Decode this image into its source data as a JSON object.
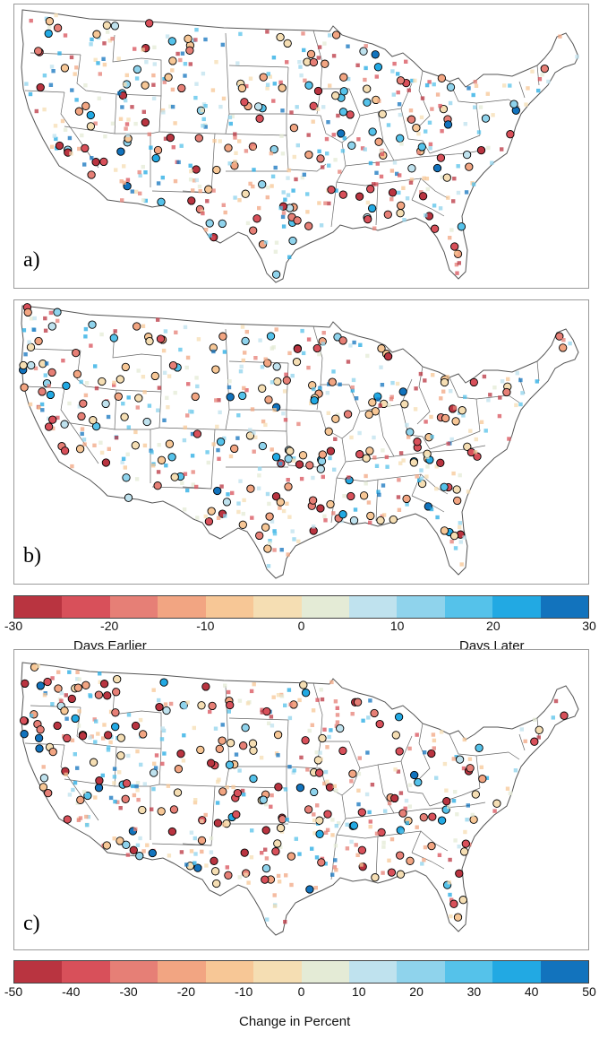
{
  "panels": [
    {
      "id": "a",
      "label": "a)"
    },
    {
      "id": "b",
      "label": "b)"
    },
    {
      "id": "c",
      "label": "c)"
    }
  ],
  "colorbar_days": {
    "ticks": [
      "-30",
      "-20",
      "-10",
      "0",
      "10",
      "20",
      "30"
    ],
    "label_left": "Days Earlier",
    "label_right": "Days Later",
    "colors": [
      "#b93440",
      "#d8505a",
      "#e67f76",
      "#f2a582",
      "#f7c796",
      "#f5deb3",
      "#e4ebd6",
      "#bfe2ee",
      "#8fd3ec",
      "#55c2ea",
      "#22a9e3",
      "#1273bd"
    ]
  },
  "colorbar_percent": {
    "ticks": [
      "-50",
      "-40",
      "-30",
      "-20",
      "-10",
      "0",
      "10",
      "20",
      "30",
      "40",
      "50"
    ],
    "label": "Change in Percent",
    "colors": [
      "#b93440",
      "#d8505a",
      "#e67f76",
      "#f2a582",
      "#f7c796",
      "#f5deb3",
      "#e4ebd6",
      "#bfe2ee",
      "#8fd3ec",
      "#55c2ea",
      "#22a9e3",
      "#1273bd"
    ]
  }
}
